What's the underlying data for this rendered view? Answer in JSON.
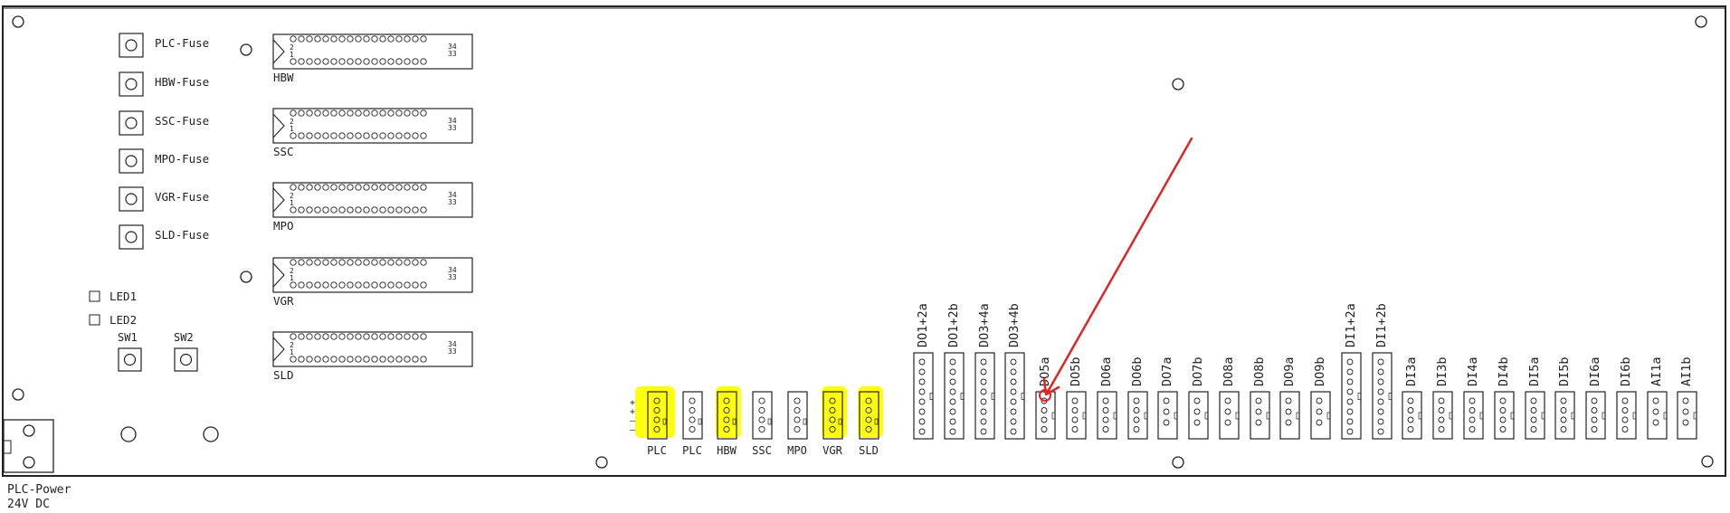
{
  "fuses": [
    {
      "label": "PLC-Fuse"
    },
    {
      "label": "HBW-Fuse"
    },
    {
      "label": "SSC-Fuse"
    },
    {
      "label": "MPO-Fuse"
    },
    {
      "label": "VGR-Fuse"
    },
    {
      "label": "SLD-Fuse"
    }
  ],
  "ribbon_connectors": [
    {
      "name": "HBW",
      "pin_top": "2",
      "pin_bottom": "1",
      "pin_top_end": "34",
      "pin_bottom_end": "33"
    },
    {
      "name": "SSC",
      "pin_top": "2",
      "pin_bottom": "1",
      "pin_top_end": "34",
      "pin_bottom_end": "33"
    },
    {
      "name": "MPO",
      "pin_top": "2",
      "pin_bottom": "1",
      "pin_top_end": "34",
      "pin_bottom_end": "33"
    },
    {
      "name": "VGR",
      "pin_top": "2",
      "pin_bottom": "1",
      "pin_top_end": "34",
      "pin_bottom_end": "33"
    },
    {
      "name": "SLD",
      "pin_top": "2",
      "pin_bottom": "1",
      "pin_top_end": "34",
      "pin_bottom_end": "33"
    }
  ],
  "leds": [
    {
      "label": "LED1"
    },
    {
      "label": "LED2"
    }
  ],
  "switches": [
    {
      "label": "SW1"
    },
    {
      "label": "SW2"
    }
  ],
  "power_connectors": [
    {
      "label": "PLC",
      "pin_marks": [
        "+",
        "+",
        "–",
        "–"
      ],
      "highlighted": true
    },
    {
      "label": "PLC",
      "highlighted": false
    },
    {
      "label": "HBW",
      "highlighted": true
    },
    {
      "label": "SSC",
      "highlighted": false
    },
    {
      "label": "MPO",
      "highlighted": false
    },
    {
      "label": "VGR",
      "highlighted": true
    },
    {
      "label": "SLD",
      "highlighted": true
    }
  ],
  "io_connectors": [
    {
      "label": "DO1+2a",
      "pins": 8
    },
    {
      "label": "DO1+2b",
      "pins": 8
    },
    {
      "label": "DO3+4a",
      "pins": 8
    },
    {
      "label": "DO3+4b",
      "pins": 8
    },
    {
      "label": "DO5a",
      "pins": 4
    },
    {
      "label": "DO5b",
      "pins": 4
    },
    {
      "label": "DO6a",
      "pins": 4
    },
    {
      "label": "DO6b",
      "pins": 4
    },
    {
      "label": "DO7a",
      "pins": 3
    },
    {
      "label": "DO7b",
      "pins": 3
    },
    {
      "label": "DO8a",
      "pins": 3
    },
    {
      "label": "DO8b",
      "pins": 3
    },
    {
      "label": "DO9a",
      "pins": 3
    },
    {
      "label": "DO9b",
      "pins": 3
    },
    {
      "label": "DI1+2a",
      "pins": 8
    },
    {
      "label": "DI1+2b",
      "pins": 8
    },
    {
      "label": "DI3a",
      "pins": 4
    },
    {
      "label": "DI3b",
      "pins": 4
    },
    {
      "label": "DI4a",
      "pins": 4
    },
    {
      "label": "DI4b",
      "pins": 4
    },
    {
      "label": "DI5a",
      "pins": 4
    },
    {
      "label": "DI5b",
      "pins": 4
    },
    {
      "label": "DI6a",
      "pins": 4
    },
    {
      "label": "DI6b",
      "pins": 4
    },
    {
      "label": "AI1a",
      "pins": 3
    },
    {
      "label": "AI1b",
      "pins": 3
    }
  ],
  "power_input": {
    "line1": "PLC-Power",
    "line2": "24V DC"
  },
  "annotation": {
    "target": "DO5a",
    "color": "#e02424"
  },
  "colors": {
    "highlight": "#ffff00",
    "arrow": "#e02424",
    "ink": "#222222"
  }
}
